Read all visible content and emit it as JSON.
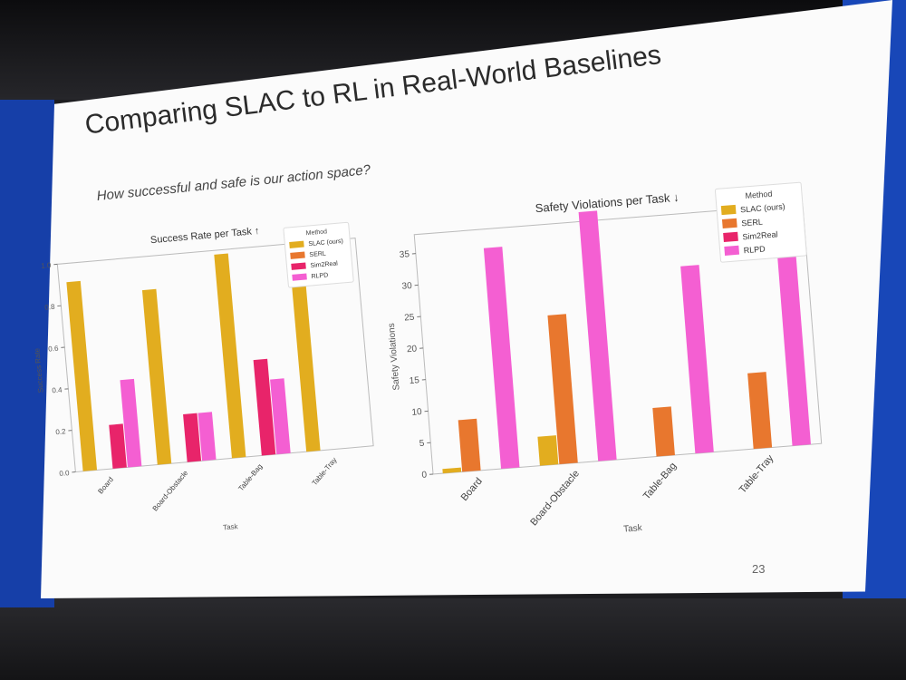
{
  "slide": {
    "title": "Comparing SLAC to RL in Real-World Baselines",
    "subtitle": "How successful and safe is our action space?",
    "page_number": "23"
  },
  "chart_data": [
    {
      "type": "bar",
      "title": "Success Rate per Task",
      "direction_arrow": "↑",
      "xlabel": "Task",
      "ylabel": "Success Rate",
      "ylim": [
        0,
        1.0
      ],
      "yticks": [
        "0.0",
        "0.2",
        "0.4",
        "0.6",
        "0.8",
        "1.0"
      ],
      "categories": [
        "Board",
        "Board-Obstacle",
        "Table-Bag",
        "Table-Tray"
      ],
      "legend_title": "Method",
      "legend_position": "top-right",
      "series": [
        {
          "name": "SLAC (ours)",
          "color": "#e2ad1f",
          "values": [
            0.91,
            0.84,
            0.98,
            0.8
          ]
        },
        {
          "name": "SERL",
          "color": "#e8772e",
          "values": [
            0,
            0,
            0,
            0
          ]
        },
        {
          "name": "Sim2Real",
          "color": "#e8246a",
          "values": [
            0.21,
            0.23,
            0.46,
            0
          ]
        },
        {
          "name": "RLPD",
          "color": "#f45fd2",
          "values": [
            0.42,
            0.23,
            0.36,
            0
          ]
        }
      ]
    },
    {
      "type": "bar",
      "title": "Safety Violations per Task",
      "direction_arrow": "↓",
      "xlabel": "Task",
      "ylabel": "Safety Violations",
      "ylim": [
        0,
        38
      ],
      "yticks": [
        "0",
        "5",
        "10",
        "15",
        "20",
        "25",
        "30",
        "35"
      ],
      "categories": [
        "Board",
        "Board-Obstacle",
        "Table-Bag",
        "Table-Tray"
      ],
      "legend_title": "Method",
      "legend_position": "top-right",
      "series": [
        {
          "name": "SLAC (ours)",
          "color": "#e2ad1f",
          "values": [
            0.7,
            4.6,
            0,
            0
          ]
        },
        {
          "name": "SERL",
          "color": "#e8772e",
          "values": [
            8.2,
            23.6,
            7.7,
            12
          ]
        },
        {
          "name": "Sim2Real",
          "color": "#e8246a",
          "values": [
            0,
            0,
            0,
            0
          ]
        },
        {
          "name": "RLPD",
          "color": "#f45fd2",
          "values": [
            35,
            39.5,
            29.7,
            37
          ]
        }
      ]
    }
  ]
}
